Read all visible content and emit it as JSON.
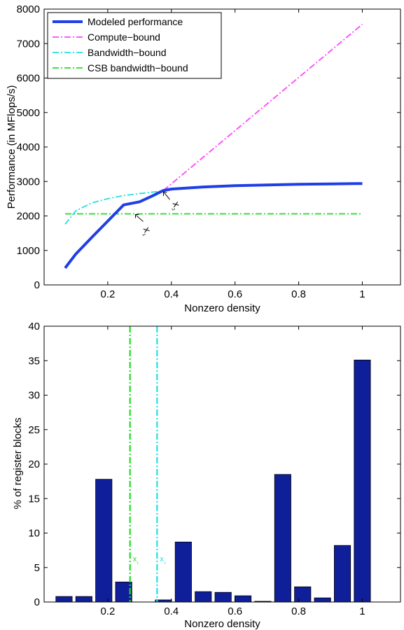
{
  "chart_data": [
    {
      "type": "line",
      "xlabel": "Nonzero density",
      "ylabel": "Performance (in MFlops/s)",
      "xlim": [
        0,
        1.12
      ],
      "ylim": [
        0,
        8000
      ],
      "xticks": [
        0.2,
        0.4,
        0.6,
        0.8,
        1
      ],
      "xtick_labels": [
        "0.2",
        "0.4",
        "0.6",
        "0.8",
        "1"
      ],
      "yticks": [
        0,
        1000,
        2000,
        3000,
        4000,
        5000,
        6000,
        7000,
        8000
      ],
      "ytick_labels": [
        "0",
        "1000",
        "2000",
        "3000",
        "4000",
        "5000",
        "6000",
        "7000",
        "8000"
      ],
      "legend_position": "top-left",
      "series": [
        {
          "name": "Modeled performance",
          "color": "#1f3fe6",
          "style": "solid",
          "x": [
            0.066,
            0.1,
            0.15,
            0.2,
            0.25,
            0.3,
            0.34,
            0.375,
            0.4,
            0.5,
            0.6,
            0.7,
            0.8,
            0.9,
            1.0
          ],
          "y": [
            490,
            900,
            1380,
            1850,
            2320,
            2410,
            2580,
            2740,
            2780,
            2840,
            2880,
            2900,
            2920,
            2930,
            2940
          ]
        },
        {
          "name": "Compute−bound",
          "color": "#ff44ff",
          "style": "dashdot",
          "x": [
            0.375,
            1.0
          ],
          "y": [
            2740,
            7560
          ]
        },
        {
          "name": "Bandwidth−bound",
          "color": "#22e0e0",
          "style": "dashdot",
          "x": [
            0.066,
            0.1,
            0.15,
            0.2,
            0.25,
            0.3,
            0.35,
            0.375
          ],
          "y": [
            1760,
            2150,
            2380,
            2500,
            2590,
            2650,
            2700,
            2740
          ]
        },
        {
          "name": "CSB bandwidth−bound",
          "color": "#22dd22",
          "style": "dashdot",
          "x": [
            0.066,
            1.0
          ],
          "y": [
            2060,
            2060
          ]
        }
      ],
      "annotations": [
        {
          "text": "x₁",
          "x": 0.285,
          "y": 2080
        },
        {
          "text": "x₂",
          "x": 0.375,
          "y": 2740
        }
      ]
    },
    {
      "type": "bar",
      "xlabel": "Nonzero density",
      "ylabel": "% of register blocks",
      "xlim": [
        0,
        1.12
      ],
      "ylim": [
        0,
        40
      ],
      "xticks": [
        0.2,
        0.4,
        0.6,
        0.8,
        1
      ],
      "xtick_labels": [
        "0.2",
        "0.4",
        "0.6",
        "0.8",
        "1"
      ],
      "yticks": [
        0,
        5,
        10,
        15,
        20,
        25,
        30,
        35,
        40
      ],
      "ytick_labels": [
        "0",
        "5",
        "10",
        "15",
        "20",
        "25",
        "30",
        "35",
        "40"
      ],
      "bar_color": "#0f1f9a",
      "bar_width": 0.0625,
      "x": [
        0.0625,
        0.125,
        0.1875,
        0.25,
        0.3125,
        0.375,
        0.4375,
        0.5,
        0.5625,
        0.625,
        0.6875,
        0.75,
        0.8125,
        0.875,
        0.9375,
        1.0
      ],
      "values": [
        0.8,
        0.8,
        17.8,
        2.9,
        0.0,
        0.3,
        8.7,
        1.5,
        1.4,
        0.9,
        0.1,
        18.5,
        2.2,
        0.6,
        8.2,
        35.1
      ],
      "reference_lines": [
        {
          "label": "x₁",
          "x": 0.27,
          "color": "#22dd22"
        },
        {
          "label": "x₂",
          "x": 0.355,
          "color": "#22e0e0"
        }
      ]
    }
  ]
}
